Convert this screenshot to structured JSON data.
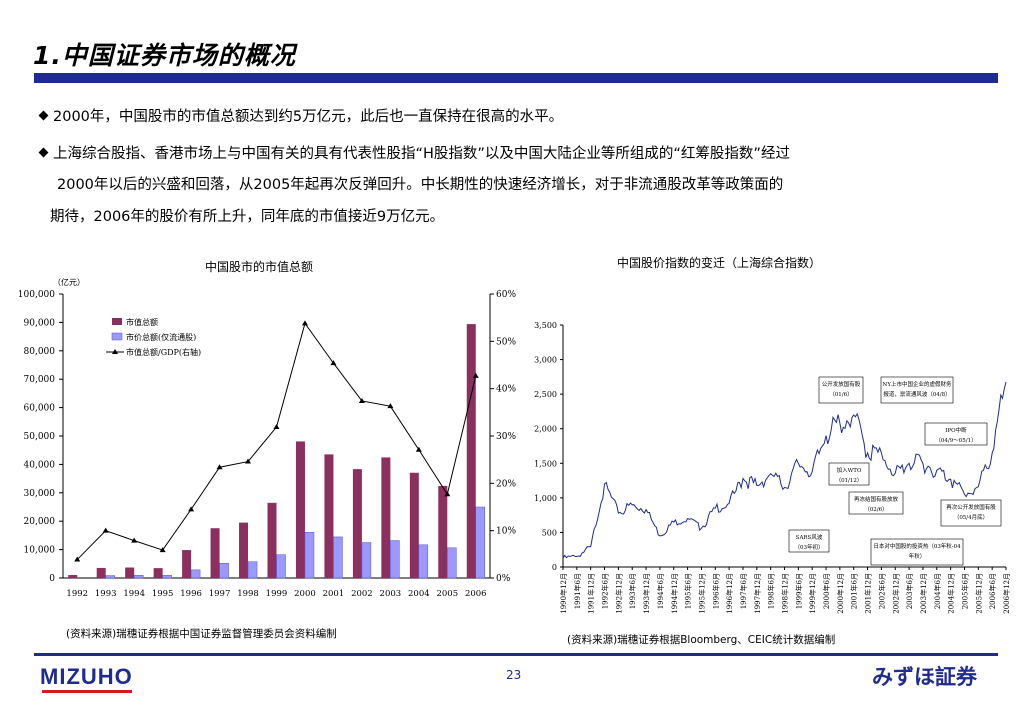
{
  "header": {
    "title": "1.中国证券市场的概况"
  },
  "bullets": [
    "2000年，中国股市的市值总额达到约5万亿元，此后也一直保持在很高的水平。",
    "上海综合股指、香港市场上与中国有关的具有代表性股指“H股指数”以及中国大陆企业等所组成的“红筹股指数”经过"
  ],
  "bullet_cont": [
    "2000年以后的兴盛和回落，从2005年起再次反弹回升。中长期性的快速经济增长，对于非流通股改革等政策面的",
    "期待，2006年的股价有所上升，同年底的市值接近9万亿元。"
  ],
  "chart_data": [
    {
      "type": "bar",
      "title": "中国股市的市值总额",
      "ylabel": "（亿元）",
      "categories": [
        "1992",
        "1993",
        "1994",
        "1995",
        "1996",
        "1997",
        "1998",
        "1999",
        "2000",
        "2001",
        "2002",
        "2003",
        "2004",
        "2005",
        "2006"
      ],
      "ylim": [
        0,
        100000
      ],
      "y_ticks": [
        "0",
        "10,000",
        "20,000",
        "30,000",
        "40,000",
        "50,000",
        "60,000",
        "70,000",
        "80,000",
        "90,000",
        "100,000"
      ],
      "y2lim": [
        0,
        60
      ],
      "y2_ticks": [
        "0%",
        "10%",
        "20%",
        "30%",
        "40%",
        "50%",
        "60%"
      ],
      "series": [
        {
          "name": "市值总额",
          "color": "#8b2f5f",
          "values": [
            1048,
            3541,
            3691,
            3474,
            9842,
            17529,
            19506,
            26471,
            48091,
            43522,
            38329,
            42458,
            37056,
            32430,
            89404
          ]
        },
        {
          "name": "市价总额(仅流通股)",
          "color": "#9999ff",
          "values": [
            0,
            862,
            969,
            938,
            2867,
            5204,
            5746,
            8214,
            16088,
            14463,
            12485,
            13179,
            11689,
            10631,
            25004
          ]
        },
        {
          "name": "市值总额/GDP(右轴)",
          "axis": "right",
          "color": "#000000",
          "values": [
            3.9,
            10.0,
            7.9,
            5.9,
            14.5,
            23.4,
            24.6,
            31.9,
            53.8,
            45.4,
            37.4,
            36.3,
            27.1,
            17.7,
            42.7
          ]
        }
      ],
      "legend_position": "top-left",
      "source": "(资料来源)瑞穗证券根据中国证券监督管理委员会资料编制"
    },
    {
      "type": "line",
      "title": "中国股价指数的变迁（上海综合指数）",
      "x_labels": [
        "1990年12月",
        "1991年6月",
        "1991年12月",
        "1992年6月",
        "1992年12月",
        "1993年6月",
        "1993年12月",
        "1994年6月",
        "1994年12月",
        "1995年6月",
        "1995年12月",
        "1996年6月",
        "1996年12月",
        "1997年6月",
        "1997年12月",
        "1998年6月",
        "1998年12月",
        "1999年6月",
        "1999年12月",
        "2000年6月",
        "2000年12月",
        "2001年6月",
        "2001年12月",
        "2002年6月",
        "2002年12月",
        "2003年6月",
        "2003年12月",
        "2004年6月",
        "2004年12月",
        "2005年6月",
        "2005年12月",
        "2006年6月",
        "2006年12月"
      ],
      "ylim": [
        0,
        3500
      ],
      "y_ticks": [
        "0",
        "500",
        "1,000",
        "1,500",
        "2,000",
        "2,500",
        "3,000",
        "3,500"
      ],
      "series": [
        {
          "name": "上海综合指数",
          "color": "#1f2c8f",
          "values": [
            128,
            150,
            292,
            1200,
            780,
            900,
            830,
            450,
            650,
            700,
            560,
            850,
            920,
            1280,
            1180,
            1350,
            1150,
            1500,
            1380,
            1900,
            2080,
            2200,
            1650,
            1650,
            1360,
            1500,
            1500,
            1400,
            1270,
            1050,
            1160,
            1650,
            2675
          ]
        }
      ],
      "annotations": [
        {
          "lines": [
            "公开发放国有股",
            "（01/6）"
          ]
        },
        {
          "lines": [
            "NY上市中国企业的虚假财务",
            "报道，禀流通风波（04/8）"
          ]
        },
        {
          "lines": [
            "IPO中断",
            "（04/9～05/1）"
          ]
        },
        {
          "lines": [
            "加入WTO",
            "（01/12）"
          ]
        },
        {
          "lines": [
            "再冻结国有股放放",
            "（02/6）"
          ]
        },
        {
          "lines": [
            "再次公开发放国有股",
            "（05/4月底）"
          ]
        },
        {
          "lines": [
            "SARS风波",
            "（03年初）"
          ]
        },
        {
          "lines": [
            "日本对中国股的投资热（03年秋-04",
            "年秋）"
          ]
        }
      ],
      "source": "(资料来源)瑞穗证券根据Bloomberg、CEIC统计数据编制"
    }
  ],
  "footer": {
    "page_number": "23",
    "logo_en": "MIZUHO",
    "logo_jp": "みずほ証券"
  }
}
